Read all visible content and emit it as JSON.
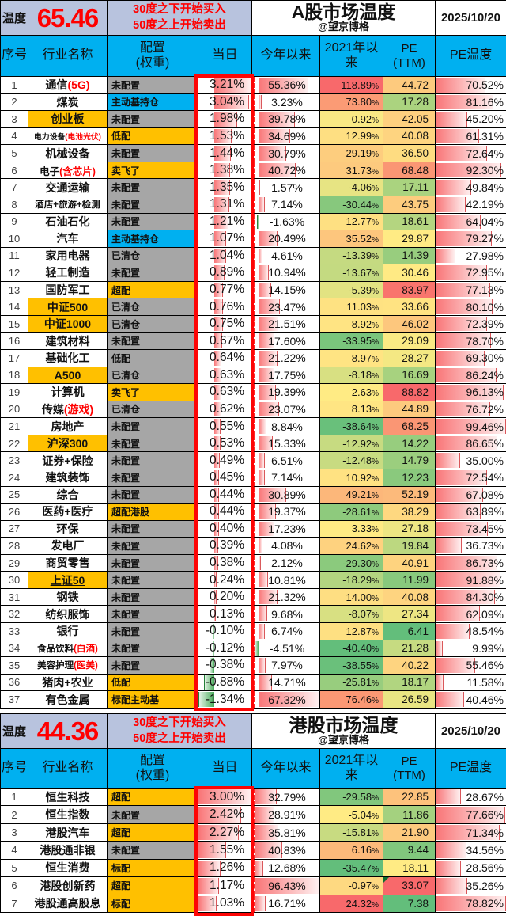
{
  "colors": {
    "header_blue": "#00b0f0",
    "band_lavender": "#b8c3de",
    "accent_red": "#ff0000",
    "chip_orange": "#ffc000",
    "chip_gray": "#a6a6a6",
    "chip_cyan": "#00b0f0",
    "name_highlight": "#ffc000",
    "scale_green": "#63be7b",
    "scale_yellow": "#ffeb84",
    "scale_red": "#f8696b",
    "bar_red": "#f8696b",
    "bar_green": "#3ea751"
  },
  "columns": [
    "序号",
    "行业名称",
    "配置\n(权重)",
    "当日",
    "今年以来",
    "2021年以\n来",
    "PE\n(TTM)",
    "PE温度"
  ],
  "tables": [
    {
      "id": "a",
      "temp_label": "温度",
      "temperature": "65.46",
      "rule_lines": [
        "30度之下开始买入",
        "50度之上开始卖出"
      ],
      "title": "A股市场温度",
      "subtitle": "@望京博格",
      "date": "2025/10/20",
      "rows": [
        {
          "no": 1,
          "name": "通信",
          "name_red": "(5G)",
          "name_hl": false,
          "config": "未配置",
          "config_color": "gray",
          "day": 3.21,
          "ytd": 55.36,
          "y2021": 118.89,
          "pe": 44.72,
          "pe_temp": 70.52
        },
        {
          "no": 2,
          "name": "煤炭",
          "name_red": "",
          "name_hl": false,
          "config": "主动基持仓",
          "config_color": "cyan",
          "day": 3.04,
          "ytd": 3.23,
          "y2021": 73.8,
          "pe": 17.28,
          "pe_temp": 81.16
        },
        {
          "no": 3,
          "name": "创业板",
          "name_red": "",
          "name_hl": true,
          "config": "未配置",
          "config_color": "gray",
          "day": 1.98,
          "ytd": 39.78,
          "y2021": 0.92,
          "pe": 42.05,
          "pe_temp": 45.2
        },
        {
          "no": 4,
          "name": "电力设备",
          "name_red": "(电池光伏)",
          "name_hl": false,
          "config": "低配",
          "config_color": "orange",
          "day": 1.53,
          "ytd": 34.69,
          "y2021": 12.99,
          "pe": 40.08,
          "pe_temp": 61.31
        },
        {
          "no": 5,
          "name": "机械设备",
          "name_red": "",
          "name_hl": false,
          "config": "未配置",
          "config_color": "gray",
          "day": 1.44,
          "ytd": 30.79,
          "y2021": 29.19,
          "pe": 36.5,
          "pe_temp": 72.64
        },
        {
          "no": 6,
          "name": "电子",
          "name_red": "(含芯片)",
          "name_hl": false,
          "config": "卖飞了",
          "config_color": "orange",
          "day": 1.38,
          "ytd": 40.72,
          "y2021": 31.73,
          "pe": 68.48,
          "pe_temp": 92.3
        },
        {
          "no": 7,
          "name": "交通运输",
          "name_red": "",
          "name_hl": false,
          "config": "未配置",
          "config_color": "gray",
          "day": 1.35,
          "ytd": 1.57,
          "y2021": -4.06,
          "pe": 17.11,
          "pe_temp": 49.84
        },
        {
          "no": 8,
          "name": "酒店+旅游+检测",
          "name_red": "",
          "name_hl": false,
          "config": "未配置",
          "config_color": "gray",
          "day": 1.31,
          "ytd": 7.14,
          "y2021": -30.44,
          "pe": 43.75,
          "pe_temp": 42.19
        },
        {
          "no": 9,
          "name": "石油石化",
          "name_red": "",
          "name_hl": false,
          "config": "未配置",
          "config_color": "gray",
          "day": 1.21,
          "ytd": -1.63,
          "y2021": 12.77,
          "pe": 18.61,
          "pe_temp": 64.04
        },
        {
          "no": 10,
          "name": "汽车",
          "name_red": "",
          "name_hl": false,
          "config": "主动基持仓",
          "config_color": "cyan",
          "day": 1.07,
          "ytd": 20.49,
          "y2021": 35.52,
          "pe": 29.87,
          "pe_temp": 79.27
        },
        {
          "no": 11,
          "name": "家用电器",
          "name_red": "",
          "name_hl": false,
          "config": "已清仓",
          "config_color": "gray",
          "day": 1.04,
          "ytd": 4.61,
          "y2021": -13.39,
          "pe": 14.39,
          "pe_temp": 27.98
        },
        {
          "no": 12,
          "name": "轻工制造",
          "name_red": "",
          "name_hl": false,
          "config": "未配置",
          "config_color": "gray",
          "day": 0.89,
          "ytd": 10.94,
          "y2021": -13.67,
          "pe": 30.46,
          "pe_temp": 72.95
        },
        {
          "no": 13,
          "name": "国防军工",
          "name_red": "",
          "name_hl": false,
          "config": "超配",
          "config_color": "orange",
          "day": 0.77,
          "ytd": 14.15,
          "y2021": -5.39,
          "pe": 83.97,
          "pe_temp": 77.13
        },
        {
          "no": 14,
          "name": "中证500",
          "name_red": "",
          "name_hl": true,
          "config": "已清仓",
          "config_color": "gray",
          "day": 0.76,
          "ytd": 23.47,
          "y2021": 11.03,
          "pe": 33.66,
          "pe_temp": 80.1
        },
        {
          "no": 15,
          "name": "中证1000",
          "name_red": "",
          "name_hl": true,
          "config": "已清仓",
          "config_color": "gray",
          "day": 0.75,
          "ytd": 21.51,
          "y2021": 8.92,
          "pe": 46.02,
          "pe_temp": 72.39
        },
        {
          "no": 16,
          "name": "建筑材料",
          "name_red": "",
          "name_hl": false,
          "config": "未配置",
          "config_color": "gray",
          "day": 0.67,
          "ytd": 17.6,
          "y2021": -33.95,
          "pe": 29.09,
          "pe_temp": 78.7
        },
        {
          "no": 17,
          "name": "基础化工",
          "name_red": "",
          "name_hl": false,
          "config": "低配",
          "config_color": "gray",
          "day": 0.64,
          "ytd": 21.22,
          "y2021": 8.97,
          "pe": 28.27,
          "pe_temp": 69.3
        },
        {
          "no": 18,
          "name": "A500",
          "name_red": "",
          "name_hl": true,
          "config": "已清仓",
          "config_color": "gray",
          "day": 0.63,
          "ytd": 17.75,
          "y2021": -8.18,
          "pe": 16.69,
          "pe_temp": 86.24
        },
        {
          "no": 19,
          "name": "计算机",
          "name_red": "",
          "name_hl": false,
          "config": "卖飞了",
          "config_color": "orange",
          "day": 0.63,
          "ytd": 19.39,
          "y2021": 2.63,
          "pe": 88.82,
          "pe_temp": 96.13
        },
        {
          "no": 20,
          "name": "传媒",
          "name_red": "(游戏)",
          "name_hl": false,
          "config": "已清仓",
          "config_color": "gray",
          "day": 0.62,
          "ytd": 23.07,
          "y2021": 8.13,
          "pe": 44.89,
          "pe_temp": 76.72
        },
        {
          "no": 21,
          "name": "房地产",
          "name_red": "",
          "name_hl": false,
          "config": "未配置",
          "config_color": "gray",
          "day": 0.55,
          "ytd": 8.84,
          "y2021": -38.64,
          "pe": 68.25,
          "pe_temp": 99.46
        },
        {
          "no": 22,
          "name": "沪深300",
          "name_red": "",
          "name_hl": true,
          "config": "未配置",
          "config_color": "gray",
          "day": 0.53,
          "ytd": 15.33,
          "y2021": -12.92,
          "pe": 14.22,
          "pe_temp": 86.65
        },
        {
          "no": 23,
          "name": "证券+保险",
          "name_red": "",
          "name_hl": false,
          "config": "未配置",
          "config_color": "gray",
          "day": 0.49,
          "ytd": 6.51,
          "y2021": -12.48,
          "pe": 14.79,
          "pe_temp": 35.0
        },
        {
          "no": 24,
          "name": "建筑装饰",
          "name_red": "",
          "name_hl": false,
          "config": "未配置",
          "config_color": "gray",
          "day": 0.45,
          "ytd": 7.14,
          "y2021": 10.92,
          "pe": 12.23,
          "pe_temp": 72.54
        },
        {
          "no": 25,
          "name": "综合",
          "name_red": "",
          "name_hl": false,
          "config": "未配置",
          "config_color": "gray",
          "day": 0.44,
          "ytd": 30.89,
          "y2021": 49.21,
          "pe": 52.19,
          "pe_temp": 67.08
        },
        {
          "no": 26,
          "name": "医药+医疗",
          "name_red": "",
          "name_hl": false,
          "config": "超配港股",
          "config_color": "orange",
          "day": 0.44,
          "ytd": 19.37,
          "y2021": -28.61,
          "pe": 38.29,
          "pe_temp": 63.89
        },
        {
          "no": 27,
          "name": "环保",
          "name_red": "",
          "name_hl": false,
          "config": "未配置",
          "config_color": "gray",
          "day": 0.4,
          "ytd": 17.23,
          "y2021": 3.33,
          "pe": 27.18,
          "pe_temp": 73.45
        },
        {
          "no": 28,
          "name": "发电厂",
          "name_red": "",
          "name_hl": false,
          "config": "未配置",
          "config_color": "gray",
          "day": 0.39,
          "ytd": 4.08,
          "y2021": 24.62,
          "pe": 19.84,
          "pe_temp": 36.73
        },
        {
          "no": 29,
          "name": "商贸零售",
          "name_red": "",
          "name_hl": false,
          "config": "未配置",
          "config_color": "gray",
          "day": 0.38,
          "ytd": 2.12,
          "y2021": -29.3,
          "pe": 40.91,
          "pe_temp": 86.73
        },
        {
          "no": 30,
          "name": "上证50",
          "name_red": "",
          "name_hl": true,
          "underline": true,
          "config": "未配置",
          "config_color": "gray",
          "day": 0.24,
          "ytd": 10.81,
          "y2021": -18.29,
          "pe": 11.99,
          "pe_temp": 91.88
        },
        {
          "no": 31,
          "name": "钢铁",
          "name_red": "",
          "name_hl": false,
          "config": "未配置",
          "config_color": "gray",
          "day": 0.2,
          "ytd": 21.32,
          "y2021": 14.0,
          "pe": 40.08,
          "pe_temp": 84.3
        },
        {
          "no": 32,
          "name": "纺织服饰",
          "name_red": "",
          "name_hl": false,
          "config": "未配置",
          "config_color": "gray",
          "day": 0.13,
          "ytd": 9.68,
          "y2021": -8.07,
          "pe": 27.34,
          "pe_temp": 62.09
        },
        {
          "no": 33,
          "name": "银行",
          "name_red": "",
          "name_hl": false,
          "config": "未配置",
          "config_color": "gray",
          "day": -0.1,
          "ytd": 6.74,
          "y2021": 12.87,
          "pe": 6.41,
          "pe_temp": 48.54
        },
        {
          "no": 34,
          "name": "食品饮料",
          "name_red": "(白酒)",
          "name_hl": false,
          "config": "未配置",
          "config_color": "gray",
          "day": -0.12,
          "ytd": -4.51,
          "y2021": -40.4,
          "pe": 21.28,
          "pe_temp": 9.99
        },
        {
          "no": 35,
          "name": "美容护理",
          "name_red": "(医美)",
          "name_hl": false,
          "config": "未配置",
          "config_color": "gray",
          "day": -0.38,
          "ytd": 7.97,
          "y2021": -38.55,
          "pe": 40.22,
          "pe_temp": 55.46
        },
        {
          "no": 36,
          "name": "猪肉+农业",
          "name_red": "",
          "name_hl": false,
          "config": "低配",
          "config_color": "orange",
          "day": -0.88,
          "ytd": 14.71,
          "y2021": -25.81,
          "pe": 18.17,
          "pe_temp": 11.58
        },
        {
          "no": 37,
          "name": "有色金属",
          "name_red": "",
          "name_hl": false,
          "config": "标配主动基",
          "config_color": "orange",
          "day": -1.34,
          "ytd": 67.32,
          "y2021": 76.46,
          "pe": 26.59,
          "pe_temp": 40.46
        }
      ]
    },
    {
      "id": "hk",
      "temp_label": "温度",
      "temperature": "44.36",
      "rule_lines": [
        "30度之下开始买入",
        "50度之上开始卖出"
      ],
      "title": "港股市场温度",
      "subtitle": "@望京博格",
      "date": "2025/10/20",
      "rows": [
        {
          "no": 1,
          "name": "恒生科技",
          "name_red": "",
          "name_hl": false,
          "config": "超配",
          "config_color": "orange",
          "day": 3.0,
          "ytd": 32.79,
          "y2021": -29.58,
          "pe": 22.85,
          "pe_temp": 28.67
        },
        {
          "no": 2,
          "name": "恒生指数",
          "name_red": "",
          "name_hl": false,
          "config": "未配置",
          "config_color": "gray",
          "day": 2.42,
          "ytd": 28.91,
          "y2021": -5.04,
          "pe": 11.86,
          "pe_temp": 77.66
        },
        {
          "no": 3,
          "name": "港股汽车",
          "name_red": "",
          "name_hl": false,
          "config": "超配",
          "config_color": "orange",
          "day": 2.27,
          "ytd": 35.81,
          "y2021": -15.81,
          "pe": 21.9,
          "pe_temp": 71.34
        },
        {
          "no": 4,
          "name": "港股通非银",
          "name_red": "",
          "name_hl": false,
          "config": "未配置",
          "config_color": "gray",
          "day": 1.55,
          "ytd": 40.83,
          "y2021": 6.16,
          "pe": 9.44,
          "pe_temp": 34.56
        },
        {
          "no": 5,
          "name": "恒生消费",
          "name_red": "",
          "name_hl": false,
          "config": "标配",
          "config_color": "orange",
          "day": 1.26,
          "ytd": 12.68,
          "y2021": -35.47,
          "pe": 18.11,
          "pe_temp": 28.56
        },
        {
          "no": 6,
          "name": "港股创新药",
          "name_red": "",
          "name_hl": false,
          "config": "超配",
          "config_color": "orange",
          "day": 1.17,
          "ytd": 96.43,
          "y2021": -0.97,
          "pe": 33.07,
          "pe_flag": true,
          "pe_temp": 35.26
        },
        {
          "no": 7,
          "name": "港股通高股息",
          "name_red": "",
          "name_hl": false,
          "config": "标配",
          "config_color": "orange",
          "day": 1.03,
          "ytd": 16.71,
          "y2021": 24.32,
          "pe": 7.38,
          "pe_temp": 78.82
        }
      ]
    }
  ]
}
